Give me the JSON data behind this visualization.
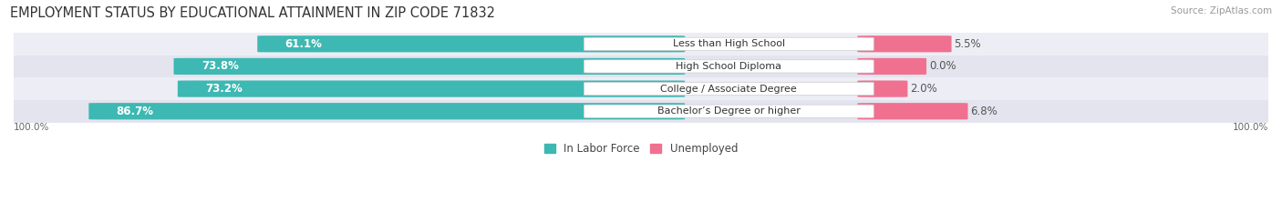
{
  "title": "EMPLOYMENT STATUS BY EDUCATIONAL ATTAINMENT IN ZIP CODE 71832",
  "source": "Source: ZipAtlas.com",
  "categories": [
    "Less than High School",
    "High School Diploma",
    "College / Associate Degree",
    "Bachelor’s Degree or higher"
  ],
  "labor_force_pct": [
    61.1,
    73.8,
    73.2,
    86.7
  ],
  "unemployed_pct": [
    5.5,
    0.0,
    2.0,
    6.8
  ],
  "labor_force_color": "#3db8b2",
  "unemployed_color": "#f07090",
  "row_bg_colors": [
    "#ededf5",
    "#e4e4ef"
  ],
  "axis_label_left": "100.0%",
  "axis_label_right": "100.0%",
  "legend_lf": "In Labor Force",
  "legend_un": "Unemployed",
  "title_fontsize": 10.5,
  "source_fontsize": 7.5,
  "bar_label_fontsize": 8.5,
  "cat_label_fontsize": 8,
  "axis_fontsize": 7.5,
  "legend_fontsize": 8.5,
  "figsize": [
    14.06,
    2.33
  ],
  "dpi": 100
}
